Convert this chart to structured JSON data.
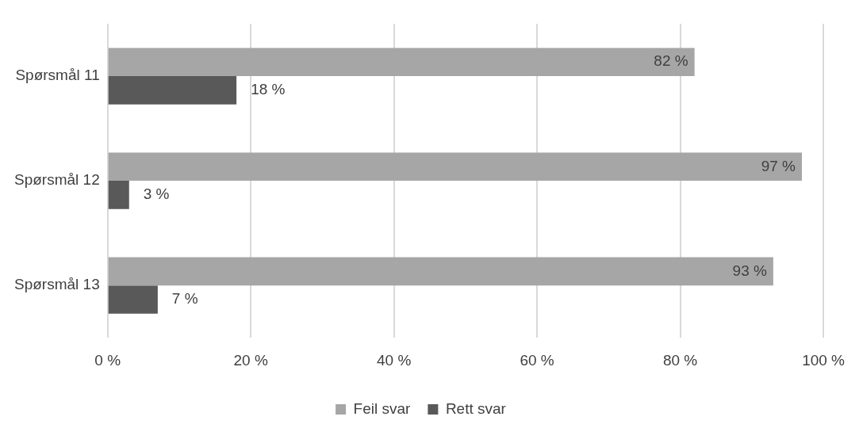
{
  "chart_data": {
    "type": "bar",
    "orientation": "horizontal",
    "categories": [
      "Spørsmål 11",
      "Spørsmål 12",
      "Spørsmål 13"
    ],
    "series": [
      {
        "name": "Feil svar",
        "color": "#a6a6a6",
        "values": [
          82,
          97,
          93
        ],
        "value_labels": [
          "82 %",
          "97 %",
          "93 %"
        ]
      },
      {
        "name": "Rett svar",
        "color": "#595959",
        "values": [
          18,
          3,
          7
        ],
        "value_labels": [
          "18 %",
          "3 %",
          "7 %"
        ]
      }
    ],
    "xlim": [
      0,
      100
    ],
    "xticks": [
      {
        "value": 0,
        "label": "0 %"
      },
      {
        "value": 20,
        "label": "20 %"
      },
      {
        "value": 40,
        "label": "40 %"
      },
      {
        "value": 60,
        "label": "60 %"
      },
      {
        "value": 80,
        "label": "80 %"
      },
      {
        "value": 100,
        "label": "100 %"
      }
    ],
    "grid": "x",
    "legend": "bottom"
  }
}
